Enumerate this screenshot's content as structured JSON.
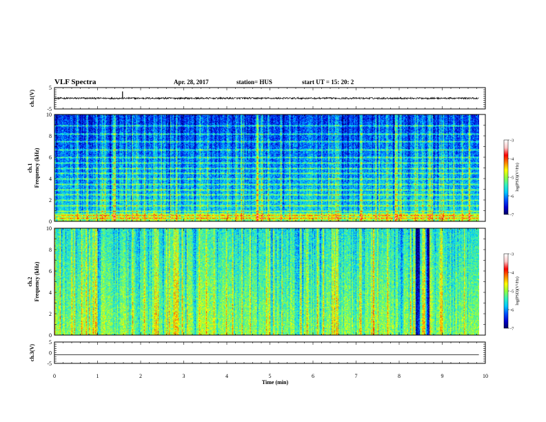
{
  "header": {
    "title": "VLF Spectra",
    "date": "Apr. 28, 2017",
    "station": "station= HUS",
    "start_time": "start  UT  =   15: 20: 2"
  },
  "colors": {
    "scale": [
      "#000060",
      "#0000d0",
      "#0050ff",
      "#00c8ff",
      "#30f0c0",
      "#90ff40",
      "#ffff00",
      "#ff8000",
      "#ff0000",
      "#ffc8c8",
      "#ffffff"
    ],
    "trace": "#000000"
  },
  "chart_data": [
    {
      "id": "ch1_waveform",
      "type": "line",
      "ylabel": "ch.1(V)",
      "ylim": [
        -5,
        5
      ],
      "yticklabels": [
        "5",
        "-5"
      ],
      "xlim": [
        0,
        10
      ],
      "baseline": 0,
      "noise_amplitude": 0.4,
      "spikes": [
        {
          "x": 1.58,
          "y": 3.2
        }
      ],
      "data_end": 9.85
    },
    {
      "id": "ch1_spectrogram",
      "type": "heatmap",
      "ylabel": "ch.1\nFrequency (kHz)",
      "ylabel_lines": [
        "ch.1",
        "Frequency (kHz)"
      ],
      "ylim": [
        0,
        10
      ],
      "yticklabels": [
        "0",
        "2",
        "4",
        "6",
        "8",
        "10"
      ],
      "xlim": [
        0,
        10
      ],
      "data_end": 9.85,
      "value_scale": "log(PSD)",
      "harmonic_lines_khz": [
        0.3,
        0.6,
        1.0,
        1.5,
        2.0,
        2.5,
        3.0,
        3.5,
        4.0,
        4.5,
        5.0,
        5.5,
        6.0,
        6.7,
        7.5,
        8.2,
        9.0
      ],
      "colorbar": {
        "label": "log(PSD)(V²/Hz)",
        "range": [
          -7,
          -3
        ],
        "ticks": [
          "-3",
          "-4",
          "-5",
          "-6",
          "-7"
        ]
      }
    },
    {
      "id": "ch2_spectrogram",
      "type": "heatmap",
      "ylabel": "ch.2\nFrequency (kHz)",
      "ylabel_lines": [
        "ch.2",
        "Frequency (kHz)"
      ],
      "ylim": [
        0,
        10
      ],
      "yticklabels": [
        "0",
        "2",
        "4",
        "6",
        "8",
        "10"
      ],
      "xlim": [
        0,
        10
      ],
      "data_end": 9.85,
      "value_scale": "log(PSD)",
      "dark_bands_min": [
        8.42,
        8.65
      ],
      "colorbar": {
        "label": "log(PSD)(V²/Hz)",
        "range": [
          -7,
          -3
        ],
        "ticks": [
          "-3",
          "-4",
          "-5",
          "-6",
          "-7"
        ]
      }
    },
    {
      "id": "ch3_waveform",
      "type": "line",
      "ylabel": "ch.3(V)",
      "ylim": [
        -5,
        5
      ],
      "yticklabels": [
        "5",
        "0",
        "-5"
      ],
      "xlim": [
        0,
        10
      ],
      "baseline": -1,
      "data_end": 9.85
    }
  ],
  "xaxis": {
    "label": "Time  (min)",
    "ticks": [
      "0",
      "1",
      "2",
      "3",
      "4",
      "5",
      "6",
      "7",
      "8",
      "9",
      "10"
    ]
  }
}
